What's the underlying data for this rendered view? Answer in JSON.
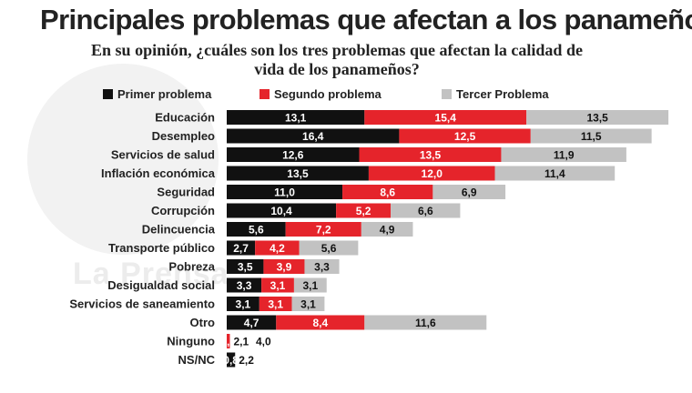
{
  "header": {
    "title": "Principales problemas que afectan a los panameños",
    "subtitle": "En su opinión, ¿cuáles son los tres problemas que afectan la calidad de vida de los panameños?"
  },
  "watermark": {
    "text": "La Prensa"
  },
  "colors": {
    "primer": "#111111",
    "segundo": "#e5242b",
    "tercer": "#c2c2c2"
  },
  "chart_data": {
    "type": "bar",
    "orientation": "horizontal",
    "stacked": true,
    "title": "Principales problemas que afectan a los panameños",
    "subtitle": "En su opinión, ¿cuáles son los tres problemas que afectan la calidad de vida de los panameños?",
    "legend_position": "top",
    "categories": [
      "Educación",
      "Desempleo",
      "Servicios de salud",
      "Inflación económica",
      "Seguridad",
      "Corrupción",
      "Delincuencia",
      "Transporte público",
      "Pobreza",
      "Desigualdad social",
      "Servicios de saneamiento",
      "Otro",
      "Ninguno",
      "NS/NC"
    ],
    "series": [
      {
        "name": "Primer problema",
        "values": [
          13.1,
          16.4,
          12.6,
          13.5,
          11.0,
          10.4,
          5.6,
          2.7,
          3.5,
          3.3,
          3.1,
          4.7,
          0.0,
          0.8
        ],
        "labels": [
          "13,1",
          "16,4",
          "12,6",
          "13,5",
          "11,0",
          "10,4",
          "5,6",
          "2,7",
          "3,5",
          "3,3",
          "3,1",
          "4,7",
          "",
          "0,8"
        ]
      },
      {
        "name": "Segundo problema",
        "values": [
          15.4,
          12.5,
          13.5,
          12.0,
          8.6,
          5.2,
          7.2,
          4.2,
          3.9,
          3.1,
          3.1,
          8.4,
          0.3,
          0.0
        ],
        "labels": [
          "15,4",
          "12,5",
          "13,5",
          "12,0",
          "8,6",
          "5,2",
          "7,2",
          "4,2",
          "3,9",
          "3,1",
          "3,1",
          "8,4",
          "0,3",
          ""
        ]
      },
      {
        "name": "Tercer Problema",
        "values": [
          13.5,
          11.5,
          11.9,
          11.4,
          6.9,
          6.6,
          4.9,
          5.6,
          3.3,
          3.1,
          3.1,
          11.6,
          0.0,
          0.0
        ],
        "labels": [
          "13,5",
          "11,5",
          "11,9",
          "11,4",
          "6,9",
          "6,6",
          "4,9",
          "5,6",
          "3,3",
          "3,1",
          "3,1",
          "11,6",
          "",
          ""
        ]
      }
    ],
    "extra_labels": [
      {
        "category": "Ninguno",
        "labels": [
          "2,1",
          "4,0"
        ]
      },
      {
        "category": "NS/NC",
        "labels": [
          "2,2"
        ]
      }
    ]
  }
}
